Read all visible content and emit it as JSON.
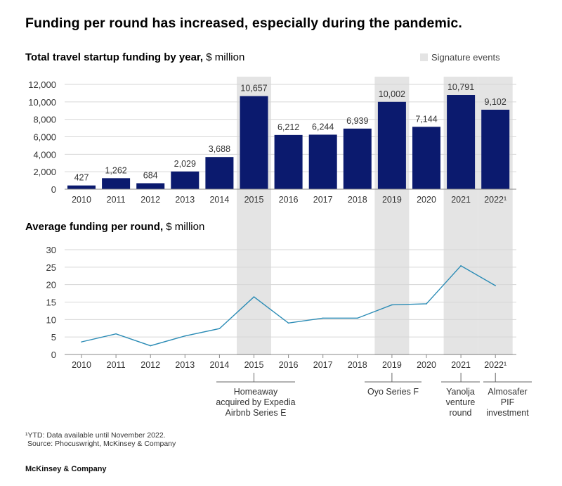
{
  "title": "Funding per round has increased, especially during the pandemic.",
  "legend": {
    "label": "Signature events",
    "color": "#e4e4e4"
  },
  "colors": {
    "bar": "#0b1a6e",
    "line": "#2a8bb5",
    "highlight": "#e4e4e4",
    "grid": "#d6d6d6"
  },
  "chart_data": [
    {
      "type": "bar",
      "title": "Total travel startup funding by year,",
      "unit": "$ million",
      "categories": [
        "2010",
        "2011",
        "2012",
        "2013",
        "2014",
        "2015",
        "2016",
        "2017",
        "2018",
        "2019",
        "2020",
        "2021",
        "2022"
      ],
      "category_labels": [
        "2010",
        "2011",
        "2012",
        "2013",
        "2014",
        "2015",
        "2016",
        "2017",
        "2018",
        "2019",
        "2020",
        "2021",
        "2022¹"
      ],
      "values": [
        427,
        1262,
        684,
        2029,
        3688,
        10657,
        6212,
        6244,
        6939,
        10002,
        7144,
        10791,
        9102
      ],
      "value_labels": [
        "427",
        "1,262",
        "684",
        "2,029",
        "3,688",
        "10,657",
        "6,212",
        "6,244",
        "6,939",
        "10,002",
        "7,144",
        "10,791",
        "9,102"
      ],
      "ylim": [
        0,
        12000
      ],
      "yticks": [
        0,
        2000,
        4000,
        6000,
        8000,
        10000,
        12000
      ],
      "ytick_labels": [
        "0",
        "2,000",
        "4,000",
        "6,000",
        "8,000",
        "10,000",
        "12,000"
      ],
      "highlighted": [
        "2015",
        "2019",
        "2021",
        "2022"
      ],
      "grid": true
    },
    {
      "type": "line",
      "title": "Average funding per round,",
      "unit": "$ million",
      "categories": [
        "2010",
        "2011",
        "2012",
        "2013",
        "2014",
        "2015",
        "2016",
        "2017",
        "2018",
        "2019",
        "2020",
        "2021",
        "2022"
      ],
      "category_labels": [
        "2010",
        "2011",
        "2012",
        "2013",
        "2014",
        "2015",
        "2016",
        "2017",
        "2018",
        "2019",
        "2020",
        "2021",
        "2022¹"
      ],
      "values": [
        3.6,
        5.9,
        2.5,
        5.3,
        7.4,
        16.5,
        9.0,
        10.4,
        10.4,
        14.2,
        14.5,
        25.4,
        19.7
      ],
      "ylim": [
        0,
        30
      ],
      "yticks": [
        0,
        5,
        10,
        15,
        20,
        25,
        30
      ],
      "ytick_labels": [
        "0",
        "5",
        "10",
        "15",
        "20",
        "25",
        "30"
      ],
      "highlighted": [
        "2015",
        "2019",
        "2021",
        "2022"
      ],
      "grid": true,
      "annotations": [
        {
          "year": "2015",
          "lines": [
            "Homeaway",
            "acquired by Expedia",
            "Airbnb Series E"
          ]
        },
        {
          "year": "2019",
          "lines": [
            "Oyo Series F"
          ]
        },
        {
          "year": "2021",
          "lines": [
            "Yanolja",
            "venture",
            "round"
          ]
        },
        {
          "year": "2022",
          "lines": [
            "Almosafer",
            "PIF",
            "investment"
          ]
        }
      ]
    }
  ],
  "footnote": "¹YTD: Data available until November 2022.",
  "source": "Source: Phocuswright, McKinsey & Company",
  "brand": "McKinsey & Company"
}
